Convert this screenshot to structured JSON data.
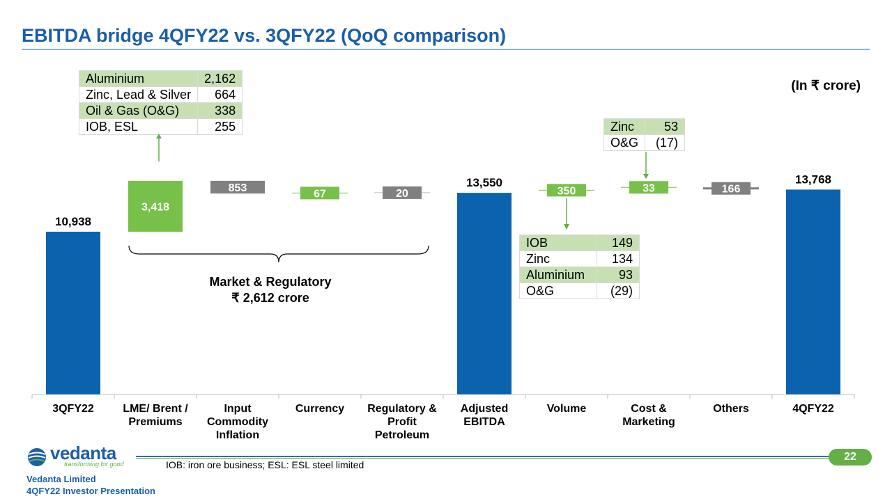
{
  "title": "EBITDA bridge 4QFY22 vs. 3QFY22 (QoQ comparison)",
  "unit_label": "(In ₹ crore)",
  "colors": {
    "title": "#1a5ea8",
    "base_bar": "#0b63ae",
    "increase_bar": "#77c04a",
    "decrease_bar": "#808080",
    "table_band": "#c6e0b4",
    "accent_green": "#62b046"
  },
  "chart_data": {
    "type": "waterfall",
    "title": "EBITDA bridge 4QFY22 vs. 3QFY22 (QoQ comparison)",
    "unit": "₹ crore",
    "categories": [
      "3QFY22",
      "LME/ Brent / Premiums",
      "Input Commodity Inflation",
      "Currency",
      "Regulatory & Profit Petroleum",
      "Adjusted EBITDA",
      "Volume",
      "Cost & Marketing",
      "Others",
      "4QFY22"
    ],
    "category_lines": [
      [
        "3QFY22"
      ],
      [
        "LME/ Brent /",
        "Premiums"
      ],
      [
        "Input",
        "Commodity",
        "Inflation"
      ],
      [
        "Currency"
      ],
      [
        "Regulatory &",
        "Profit",
        "Petroleum"
      ],
      [
        "Adjusted",
        "EBITDA"
      ],
      [
        "Volume"
      ],
      [
        "Cost &",
        "Marketing"
      ],
      [
        "Others"
      ],
      [
        "4QFY22"
      ]
    ],
    "values": [
      10938,
      3418,
      -853,
      67,
      -20,
      13550,
      350,
      33,
      -166,
      13768
    ],
    "labels": [
      "10,938",
      "3,418",
      "853",
      "67",
      "20",
      "13,550",
      "350",
      "33",
      "166",
      "13,768"
    ],
    "bar_kinds": [
      "total",
      "up",
      "down",
      "up",
      "down",
      "total",
      "up",
      "up",
      "down",
      "total"
    ],
    "annotations": {
      "market_regulatory": {
        "line1": "Market & Regulatory",
        "line2": "₹ 2,612 crore"
      }
    }
  },
  "tables": {
    "lme": [
      {
        "name": "Aluminium",
        "value": "2,162"
      },
      {
        "name": "Zinc, Lead & Silver",
        "value": "664"
      },
      {
        "name": "Oil & Gas (O&G)",
        "value": "338"
      },
      {
        "name": "IOB, ESL",
        "value": "255"
      }
    ],
    "cost": [
      {
        "name": "Zinc",
        "value": "53"
      },
      {
        "name": "O&G",
        "value": "(17)"
      }
    ],
    "volume": [
      {
        "name": "IOB",
        "value": "149"
      },
      {
        "name": "Zinc",
        "value": "134"
      },
      {
        "name": "Aluminium",
        "value": "93"
      },
      {
        "name": "O&G",
        "value": "(29)"
      }
    ]
  },
  "footer": {
    "note": "IOB: iron ore business; ESL: ESL steel limited",
    "page_number": "22",
    "logo_word": "vedanta",
    "logo_tagline": "transforming for good",
    "company": "Vedanta Limited",
    "presentation": "4QFY22 Investor Presentation"
  }
}
